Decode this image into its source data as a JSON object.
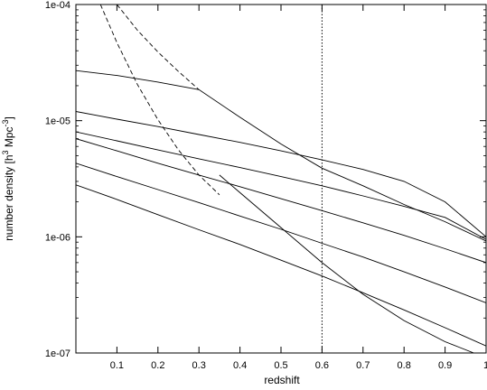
{
  "chart_data": {
    "type": "line",
    "title": "",
    "xlabel": "redshift",
    "ylabel": {
      "prefix": "number density [h",
      "sup1": "3",
      "middle": " Mpc",
      "sup2": "-3",
      "suffix": "]"
    },
    "xlim": [
      0,
      1
    ],
    "ylim": [
      1e-07,
      0.0001
    ],
    "yscale": "log",
    "grid": false,
    "legend": "none",
    "xticks": [
      {
        "value": 0.1,
        "label": "0.1"
      },
      {
        "value": 0.2,
        "label": "0.2"
      },
      {
        "value": 0.3,
        "label": "0.3"
      },
      {
        "value": 0.4,
        "label": "0.4"
      },
      {
        "value": 0.5,
        "label": "0.5"
      },
      {
        "value": 0.6,
        "label": "0.6"
      },
      {
        "value": 0.7,
        "label": "0.7"
      },
      {
        "value": 0.8,
        "label": "0.8"
      },
      {
        "value": 0.9,
        "label": "0.9"
      },
      {
        "value": 1.0,
        "label": "1"
      }
    ],
    "yticks": [
      {
        "value": 1e-07,
        "label": "1e-07"
      },
      {
        "value": 1e-06,
        "label": "1e-06"
      },
      {
        "value": 1e-05,
        "label": "1e-05"
      },
      {
        "value": 0.0001,
        "label": "1e-04"
      }
    ],
    "vline": {
      "x": 0.6,
      "style": "dotted"
    },
    "series": [
      {
        "style": "solid",
        "x": [
          0,
          0.1,
          0.2,
          0.3,
          0.4,
          0.5,
          0.6,
          0.7,
          0.8,
          0.9,
          1.0
        ],
        "y": [
          2.8e-06,
          2.1e-06,
          1.55e-06,
          1.15e-06,
          8.6e-07,
          6.3e-07,
          4.6e-07,
          3.3e-07,
          2.35e-07,
          1.65e-07,
          1.15e-07
        ]
      },
      {
        "style": "solid",
        "x": [
          0,
          0.1,
          0.2,
          0.3,
          0.4,
          0.5,
          0.6,
          0.7,
          0.8,
          0.9,
          1.0
        ],
        "y": [
          4.3e-06,
          3.3e-06,
          2.55e-06,
          1.97e-06,
          1.51e-06,
          1.16e-06,
          8.8e-07,
          6.7e-07,
          5e-07,
          3.7e-07,
          2.7e-07
        ]
      },
      {
        "style": "solid",
        "x": [
          0,
          0.1,
          0.2,
          0.3,
          0.4,
          0.5,
          0.6,
          0.7,
          0.8,
          0.9,
          1.0
        ],
        "y": [
          7e-06,
          5.5e-06,
          4.3e-06,
          3.4e-06,
          2.7e-06,
          2.13e-06,
          1.68e-06,
          1.32e-06,
          1.03e-06,
          7.9e-07,
          6e-07
        ]
      },
      {
        "style": "solid",
        "x": [
          0,
          0.1,
          0.2,
          0.3,
          0.4,
          0.5,
          0.6,
          0.7,
          0.8,
          0.9,
          1.0
        ],
        "y": [
          8e-06,
          6.7e-06,
          5.6e-06,
          4.7e-06,
          3.95e-06,
          3.3e-06,
          2.75e-06,
          2.25e-06,
          1.83e-06,
          1.47e-06,
          9.5e-07
        ]
      },
      {
        "style": "solid",
        "x": [
          0,
          0.1,
          0.2,
          0.3,
          0.4,
          0.5,
          0.6,
          0.7,
          0.8,
          0.9,
          1.0
        ],
        "y": [
          1.2e-05,
          1.03e-05,
          8.9e-06,
          7.6e-06,
          6.5e-06,
          5.5e-06,
          4.6e-06,
          3.8e-06,
          3e-06,
          2e-06,
          1e-06
        ]
      },
      {
        "style": "solid",
        "x": [
          0,
          0.1,
          0.2,
          0.3,
          0.4,
          0.5,
          0.6,
          0.7,
          0.8,
          0.9,
          1.0
        ],
        "y": [
          2.7e-05,
          2.45e-05,
          2.15e-05,
          1.85e-05,
          1.07e-05,
          6.3e-06,
          3.9e-06,
          2.75e-06,
          1.9e-06,
          1.35e-06,
          9.2e-07
        ]
      },
      {
        "style": "dashed",
        "x": [
          0.06,
          0.1,
          0.15,
          0.2,
          0.25,
          0.3,
          0.35
        ],
        "y": [
          0.0001,
          4.7e-05,
          2.05e-05,
          1.02e-05,
          5.6e-06,
          3.4e-06,
          2.3e-06
        ]
      },
      {
        "style": "dashed",
        "x": [
          0.1,
          0.15,
          0.2,
          0.25,
          0.3
        ],
        "y": [
          0.0001,
          6e-05,
          3.9e-05,
          2.65e-05,
          1.85e-05
        ]
      },
      {
        "style": "solid",
        "x": [
          0.35,
          0.4,
          0.5,
          0.6,
          0.7,
          0.8,
          0.9,
          0.97
        ],
        "y": [
          3.4e-06,
          2.4e-06,
          1.2e-06,
          6e-07,
          3.2e-07,
          1.9e-07,
          1.25e-07,
          1e-07
        ]
      }
    ]
  }
}
